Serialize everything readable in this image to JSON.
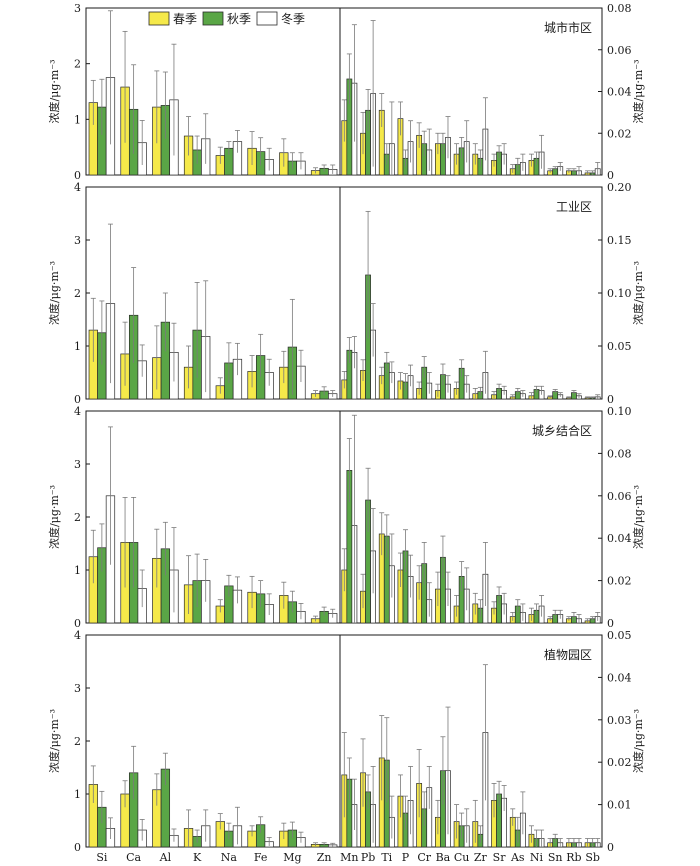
{
  "legend": [
    {
      "label": "春季",
      "color": "#f5e94a"
    },
    {
      "label": "秋季",
      "color": "#5aa646"
    },
    {
      "label": "冬季",
      "color": "#ffffff"
    }
  ],
  "colors": {
    "axis": "#1a1a1a",
    "whisker": "#7a7a7a",
    "bar_stroke": "#2a2a2a"
  },
  "left_elements": [
    "Si",
    "Ca",
    "Al",
    "K",
    "Na",
    "Fe",
    "Mg",
    "Zn"
  ],
  "right_elements": [
    "Mn",
    "Pb",
    "Ti",
    "P",
    "Cr",
    "Ba",
    "Cu",
    "Zr",
    "Sr",
    "As",
    "Ni",
    "Sn",
    "Rb",
    "Sb"
  ],
  "ylabel_left": "浓度/μg·m⁻³",
  "ylabel_right": "浓度/μg·m⁻³",
  "chart_data": [
    {
      "type": "bar",
      "title": "城市市区",
      "left_axis": {
        "ylim": [
          0,
          3
        ],
        "ticks": [
          "0",
          "1",
          "2",
          "3"
        ]
      },
      "right_axis": {
        "ylim": [
          0,
          0.08
        ],
        "ticks": [
          "0",
          "0.02",
          "0.04",
          "0.06",
          "0.08"
        ]
      },
      "left_series": [
        {
          "values": [
            1.3,
            1.58,
            1.22,
            0.7,
            0.35,
            0.48,
            0.4,
            0.08
          ],
          "errors": [
            0.4,
            1.0,
            0.65,
            0.35,
            0.15,
            0.3,
            0.25,
            0.05
          ]
        },
        {
          "values": [
            1.22,
            1.18,
            1.25,
            0.45,
            0.48,
            0.42,
            0.25,
            0.12
          ],
          "errors": [
            0.5,
            0.8,
            0.6,
            0.25,
            0.12,
            0.25,
            0.15,
            0.06
          ]
        },
        {
          "values": [
            1.75,
            0.58,
            1.35,
            0.65,
            0.6,
            0.28,
            0.25,
            0.1
          ],
          "errors": [
            1.2,
            0.4,
            1.0,
            0.45,
            0.2,
            0.2,
            0.15,
            0.08
          ]
        }
      ],
      "right_series": [
        {
          "values": [
            0.026,
            0.02,
            0.031,
            0.027,
            0.019,
            0.015,
            0.01,
            0.01,
            0.007,
            0.003,
            0.007,
            0.002,
            0.002,
            0.001
          ],
          "errors": [
            0.01,
            0.01,
            0.008,
            0.008,
            0.006,
            0.005,
            0.005,
            0.005,
            0.003,
            0.002,
            0.003,
            0.001,
            0.001,
            0.001
          ]
        },
        {
          "values": [
            0.046,
            0.031,
            0.01,
            0.008,
            0.015,
            0.015,
            0.013,
            0.008,
            0.011,
            0.005,
            0.008,
            0.003,
            0.002,
            0.001
          ],
          "errors": [
            0.012,
            0.01,
            0.005,
            0.004,
            0.006,
            0.005,
            0.005,
            0.004,
            0.003,
            0.003,
            0.003,
            0.001,
            0.001,
            0.001
          ]
        },
        {
          "values": [
            0.044,
            0.039,
            0.015,
            0.016,
            0.012,
            0.018,
            0.016,
            0.022,
            0.01,
            0.006,
            0.011,
            0.004,
            0.002,
            0.003
          ],
          "errors": [
            0.028,
            0.035,
            0.02,
            0.01,
            0.01,
            0.01,
            0.01,
            0.015,
            0.005,
            0.004,
            0.008,
            0.002,
            0.002,
            0.003
          ]
        }
      ]
    },
    {
      "type": "bar",
      "title": "工业区",
      "left_axis": {
        "ylim": [
          0,
          4
        ],
        "ticks": [
          "0",
          "1",
          "2",
          "3",
          "4"
        ]
      },
      "right_axis": {
        "ylim": [
          0,
          0.2
        ],
        "ticks": [
          "0",
          "0.05",
          "0.10",
          "0.15",
          "0.20"
        ]
      },
      "left_series": [
        {
          "values": [
            1.3,
            0.85,
            0.78,
            0.6,
            0.25,
            0.52,
            0.6,
            0.1
          ],
          "errors": [
            0.6,
            0.6,
            0.6,
            0.4,
            0.15,
            0.3,
            0.3,
            0.06
          ]
        },
        {
          "values": [
            1.25,
            1.58,
            1.45,
            1.3,
            0.68,
            0.82,
            0.98,
            0.15
          ],
          "errors": [
            0.6,
            0.9,
            0.55,
            0.9,
            0.38,
            0.4,
            0.9,
            0.08
          ]
        },
        {
          "values": [
            1.8,
            0.72,
            0.88,
            1.18,
            0.75,
            0.5,
            0.62,
            0.1
          ],
          "errors": [
            1.5,
            0.3,
            0.55,
            1.05,
            0.3,
            0.25,
            0.3,
            0.06
          ]
        }
      ],
      "right_series": [
        {
          "values": [
            0.018,
            0.027,
            0.022,
            0.017,
            0.01,
            0.008,
            0.01,
            0.005,
            0.004,
            0.002,
            0.003,
            0.002,
            0.001,
            0.001
          ],
          "errors": [
            0.008,
            0.01,
            0.008,
            0.008,
            0.006,
            0.006,
            0.006,
            0.005,
            0.003,
            0.002,
            0.003,
            0.001,
            0.001,
            0.001
          ]
        },
        {
          "values": [
            0.046,
            0.117,
            0.034,
            0.016,
            0.03,
            0.023,
            0.029,
            0.007,
            0.01,
            0.007,
            0.009,
            0.007,
            0.006,
            0.001
          ],
          "errors": [
            0.012,
            0.06,
            0.01,
            0.008,
            0.01,
            0.01,
            0.008,
            0.004,
            0.004,
            0.003,
            0.003,
            0.002,
            0.002,
            0.001
          ]
        },
        {
          "values": [
            0.044,
            0.065,
            0.025,
            0.022,
            0.015,
            0.014,
            0.014,
            0.025,
            0.008,
            0.005,
            0.008,
            0.004,
            0.003,
            0.002
          ],
          "errors": [
            0.015,
            0.025,
            0.01,
            0.01,
            0.01,
            0.008,
            0.008,
            0.02,
            0.004,
            0.003,
            0.004,
            0.002,
            0.002,
            0.002
          ]
        }
      ]
    },
    {
      "type": "bar",
      "title": "城乡结合区",
      "left_axis": {
        "ylim": [
          0,
          4
        ],
        "ticks": [
          "0",
          "1",
          "2",
          "3",
          "4"
        ]
      },
      "right_axis": {
        "ylim": [
          0,
          0.1
        ],
        "ticks": [
          "0",
          "0.02",
          "0.04",
          "0.06",
          "0.08",
          "0.10"
        ]
      },
      "left_series": [
        {
          "values": [
            1.25,
            1.52,
            1.22,
            0.72,
            0.32,
            0.58,
            0.52,
            0.08
          ],
          "errors": [
            0.5,
            0.85,
            0.55,
            0.55,
            0.12,
            0.3,
            0.25,
            0.05
          ]
        },
        {
          "values": [
            1.42,
            1.52,
            1.4,
            0.8,
            0.7,
            0.55,
            0.4,
            0.22
          ],
          "errors": [
            0.45,
            0.85,
            0.5,
            0.5,
            0.2,
            0.25,
            0.2,
            0.08
          ]
        },
        {
          "values": [
            2.4,
            0.65,
            1.0,
            0.8,
            0.62,
            0.35,
            0.22,
            0.18
          ],
          "errors": [
            1.3,
            0.35,
            0.8,
            0.4,
            0.25,
            0.2,
            0.15,
            0.08
          ]
        }
      ],
      "right_series": [
        {
          "values": [
            0.025,
            0.015,
            0.042,
            0.025,
            0.019,
            0.016,
            0.008,
            0.009,
            0.007,
            0.003,
            0.004,
            0.002,
            0.002,
            0.001
          ],
          "errors": [
            0.01,
            0.008,
            0.01,
            0.008,
            0.008,
            0.008,
            0.005,
            0.005,
            0.003,
            0.002,
            0.003,
            0.001,
            0.001,
            0.001
          ]
        },
        {
          "values": [
            0.072,
            0.058,
            0.041,
            0.034,
            0.028,
            0.031,
            0.022,
            0.007,
            0.013,
            0.008,
            0.006,
            0.004,
            0.003,
            0.002
          ],
          "errors": [
            0.015,
            0.015,
            0.01,
            0.01,
            0.01,
            0.01,
            0.007,
            0.004,
            0.004,
            0.003,
            0.003,
            0.002,
            0.002,
            0.001
          ]
        },
        {
          "values": [
            0.046,
            0.034,
            0.027,
            0.022,
            0.011,
            0.016,
            0.016,
            0.023,
            0.009,
            0.005,
            0.008,
            0.004,
            0.002,
            0.003
          ],
          "errors": [
            0.052,
            0.02,
            0.015,
            0.01,
            0.008,
            0.008,
            0.01,
            0.015,
            0.005,
            0.004,
            0.005,
            0.002,
            0.002,
            0.002
          ]
        }
      ]
    },
    {
      "type": "bar",
      "title": "植物园区",
      "left_axis": {
        "ylim": [
          0,
          4
        ],
        "ticks": [
          "0",
          "1",
          "2",
          "3",
          "4"
        ]
      },
      "right_axis": {
        "ylim": [
          0,
          0.05
        ],
        "ticks": [
          "0",
          "0.01",
          "0.02",
          "0.03",
          "0.04",
          "0.05"
        ]
      },
      "left_series": [
        {
          "values": [
            1.18,
            1.0,
            1.08,
            0.35,
            0.48,
            0.3,
            0.3,
            0.05
          ],
          "errors": [
            0.35,
            0.25,
            0.3,
            0.35,
            0.15,
            0.1,
            0.15,
            0.03
          ]
        },
        {
          "values": [
            0.75,
            1.4,
            1.47,
            0.2,
            0.3,
            0.42,
            0.32,
            0.05
          ],
          "errors": [
            0.3,
            0.5,
            0.3,
            0.12,
            0.15,
            0.15,
            0.15,
            0.03
          ]
        },
        {
          "values": [
            0.35,
            0.32,
            0.22,
            0.4,
            0.4,
            0.1,
            0.18,
            0.04
          ],
          "errors": [
            0.2,
            0.2,
            0.12,
            0.3,
            0.35,
            0.08,
            0.1,
            0.03
          ]
        }
      ],
      "right_series": [
        {
          "values": [
            0.017,
            0.0175,
            0.021,
            0.012,
            0.015,
            0.007,
            0.006,
            0.006,
            0.011,
            0.007,
            0.003,
            0.001,
            0.001,
            0.001
          ],
          "errors": [
            0.01,
            0.008,
            0.01,
            0.005,
            0.008,
            0.004,
            0.004,
            0.005,
            0.004,
            0.002,
            0.002,
            0.001,
            0.001,
            0.001
          ]
        },
        {
          "values": [
            0.016,
            0.013,
            0.0205,
            0.008,
            0.009,
            0.018,
            0.005,
            0.003,
            0.0125,
            0.004,
            0.002,
            0.002,
            0.001,
            0.001
          ],
          "errors": [
            0.005,
            0.004,
            0.01,
            0.004,
            0.004,
            0.008,
            0.003,
            0.002,
            0.003,
            0.003,
            0.002,
            0.001,
            0.001,
            0.001
          ]
        },
        {
          "values": [
            0.01,
            0.01,
            0.007,
            0.011,
            0.014,
            0.018,
            0.005,
            0.027,
            0.0115,
            0.008,
            0.002,
            0.001,
            0.001,
            0.001
          ],
          "errors": [
            0.006,
            0.009,
            0.005,
            0.008,
            0.005,
            0.015,
            0.004,
            0.016,
            0.003,
            0.005,
            0.002,
            0.001,
            0.001,
            0.001
          ]
        }
      ]
    }
  ]
}
